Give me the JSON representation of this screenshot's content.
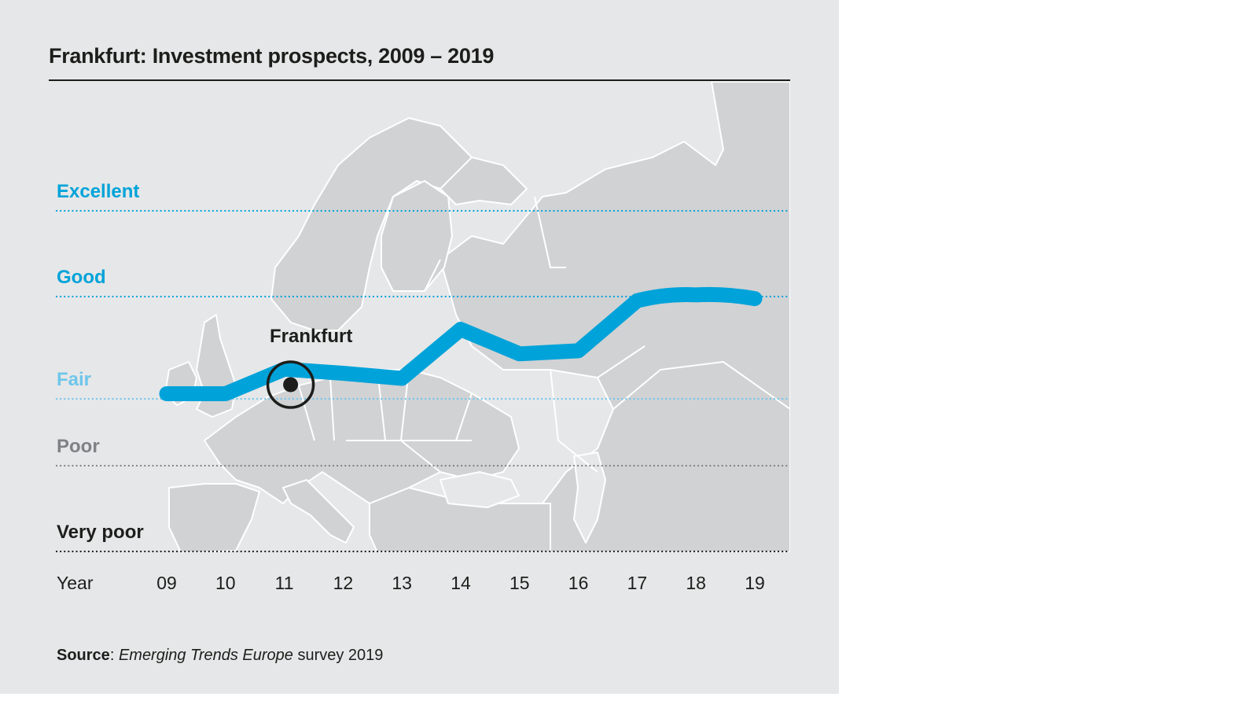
{
  "chart_data": {
    "type": "line",
    "title": "Frankfurt: Investment prospects, 2009 – 2019",
    "xlabel": "Year",
    "ylabel": "",
    "categories": [
      "09",
      "10",
      "11",
      "12",
      "13",
      "14",
      "15",
      "16",
      "17",
      "18",
      "19"
    ],
    "y_levels": [
      {
        "label": "Very poor",
        "value": 1,
        "color": "#1d1d1b"
      },
      {
        "label": "Poor",
        "value": 2,
        "color": "#808184"
      },
      {
        "label": "Fair",
        "value": 3,
        "color": "#6ec6ea"
      },
      {
        "label": "Good",
        "value": 4,
        "color": "#00a3d9"
      },
      {
        "label": "Excellent",
        "value": 5,
        "color": "#00a3d9"
      }
    ],
    "ylim": [
      1,
      5
    ],
    "grid": true,
    "series": [
      {
        "name": "Frankfurt",
        "color": "#00a3d9",
        "values": [
          3.05,
          3.05,
          3.29,
          3.25,
          3.2,
          3.68,
          3.44,
          3.47,
          3.96,
          4.02,
          3.98
        ]
      }
    ],
    "annotations": [
      {
        "text": "Frankfurt",
        "anchor_category": "11",
        "type": "marker-label"
      }
    ],
    "background": "Map of Europe"
  },
  "source": {
    "label": "Source",
    "separator": ": ",
    "title_italic": "Emerging Trends Europe",
    "suffix": " survey 2019"
  },
  "colors": {
    "panel": "#e6e7e8",
    "map_land": "#d1d2d4",
    "map_border": "#ffffff",
    "line": "#00a3d9",
    "text": "#1d1d1b"
  }
}
